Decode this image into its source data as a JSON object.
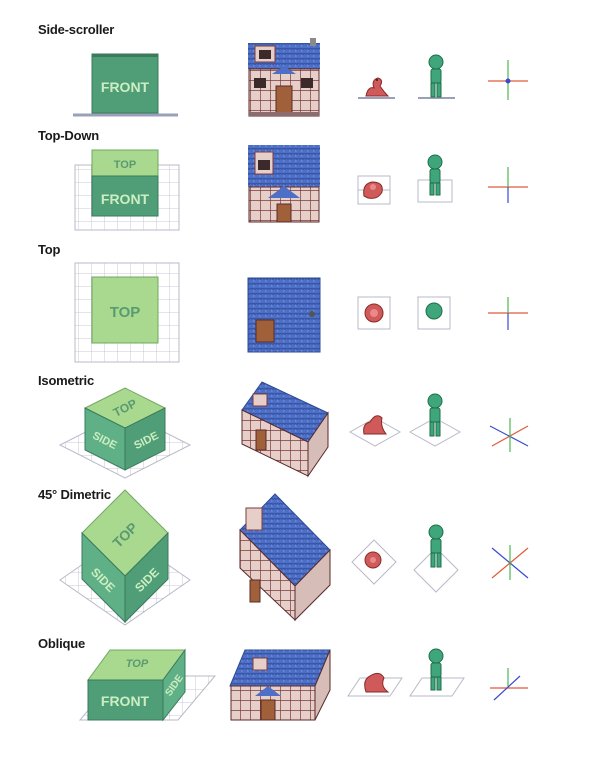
{
  "colors": {
    "cube_front": "#4f9e78",
    "cube_top": "#a9d98e",
    "cube_side": "#5fb087",
    "cube_label": "#cdeec0",
    "cube_top_label": "#5a9a72",
    "grid_line": "#b9b9c9",
    "roof": "#4d6fc7",
    "wall": "#e6cfc9",
    "beam": "#7a3b3b",
    "door": "#a0603a",
    "snake": "#d05a5a",
    "character": "#3ea67a",
    "axis_x": "#e05a3a",
    "axis_y": "#4cb84c",
    "axis_z": "#3a4bd0"
  },
  "rows": [
    {
      "title": "Side-scroller",
      "cube_labels": {
        "front": "FRONT"
      }
    },
    {
      "title": "Top-Down",
      "cube_labels": {
        "top": "TOP",
        "front": "FRONT"
      }
    },
    {
      "title": "Top",
      "cube_labels": {
        "top": "TOP"
      }
    },
    {
      "title": "Isometric",
      "cube_labels": {
        "top": "TOP",
        "left": "SIDE",
        "right": "SIDE"
      }
    },
    {
      "title": "45° Dimetric",
      "cube_labels": {
        "top": "TOP",
        "left": "SIDE",
        "right": "SIDE"
      }
    },
    {
      "title": "Oblique",
      "cube_labels": {
        "top": "TOP",
        "front": "FRONT",
        "side": "SIDE"
      }
    }
  ]
}
